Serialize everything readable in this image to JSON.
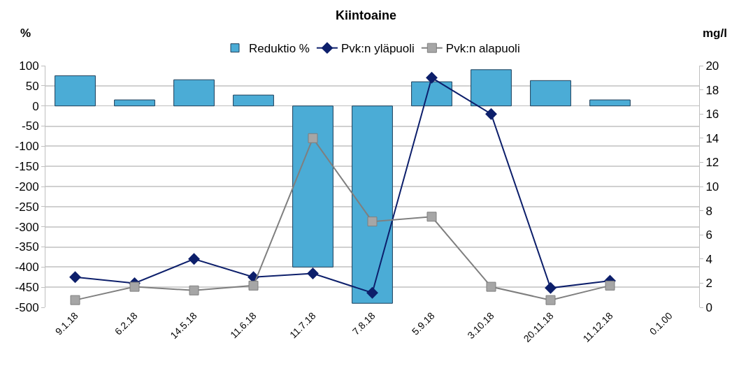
{
  "chart_data": {
    "type": "bar",
    "title": "Kiintoaine",
    "ylabel": "%",
    "y2label": "mg/l",
    "categories": [
      "9.1.18",
      "6.2.18",
      "14.5.18",
      "11.6.18",
      "11.7.18",
      "7.8.18",
      "5.9.18",
      "3.10.18",
      "20.11.18",
      "11.12.18",
      "0.1.00"
    ],
    "series": [
      {
        "name": "Reduktio %",
        "color": "#4bacd6",
        "values": [
          75,
          15,
          65,
          27,
          -400,
          -490,
          60,
          90,
          63,
          15,
          null
        ]
      },
      {
        "name": "Pvk:n yläpuoli",
        "type": "line",
        "axis": "y2",
        "marker": "diamond",
        "color": "#0d1f6b",
        "values": [
          2.5,
          2.0,
          4.0,
          2.5,
          2.8,
          1.2,
          19,
          16,
          1.6,
          2.2,
          null
        ]
      },
      {
        "name": "Pvk:n alapuoli",
        "type": "line",
        "axis": "y2",
        "marker": "square",
        "color": "#7f7f7f",
        "values": [
          0.6,
          1.7,
          1.4,
          1.8,
          14,
          7.1,
          7.5,
          1.7,
          0.6,
          1.8,
          null
        ]
      }
    ],
    "ylim": [
      -500,
      100
    ],
    "yticks": [
      -500,
      -450,
      -400,
      -350,
      -300,
      -250,
      -200,
      -150,
      -100,
      -50,
      0,
      50,
      100
    ],
    "y2lim": [
      0,
      20
    ],
    "y2ticks": [
      0,
      2,
      4,
      6,
      8,
      10,
      12,
      14,
      16,
      18,
      20
    ],
    "grid": "y",
    "legend": "top"
  }
}
